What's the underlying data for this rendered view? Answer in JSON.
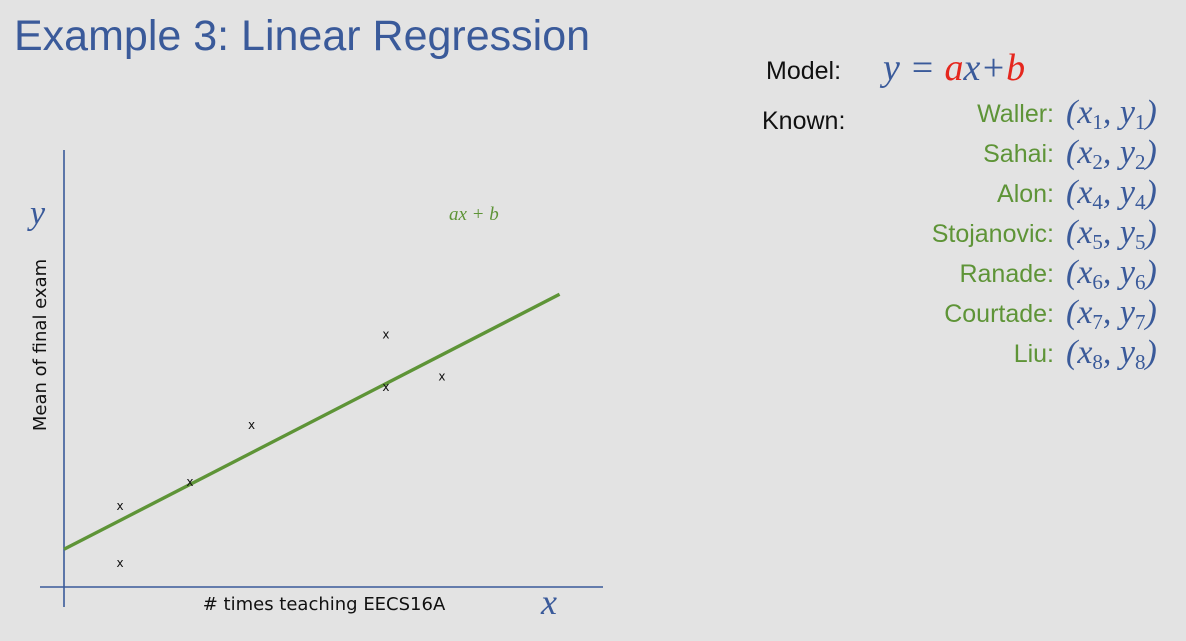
{
  "slide": {
    "title": "Example 3: Linear Regression"
  },
  "chart_data": {
    "type": "scatter",
    "title": "",
    "xlabel": "# times teaching EECS16A",
    "ylabel": "Mean of final exam",
    "x_axis_symbol": "x",
    "y_axis_symbol": "y",
    "marker_label": "x",
    "fit_line_label": "ax + b",
    "fit_line": {
      "start": [
        0,
        0.93
      ],
      "end": [
        8.85,
        7.22
      ]
    },
    "points": [
      {
        "x": 1,
        "y": 0.58
      },
      {
        "x": 1,
        "y": 1.98
      },
      {
        "x": 2.25,
        "y": 2.58
      },
      {
        "x": 3.35,
        "y": 3.98
      },
      {
        "x": 5.75,
        "y": 6.22
      },
      {
        "x": 5.75,
        "y": 4.92
      },
      {
        "x": 6.75,
        "y": 5.18
      }
    ],
    "xlim": [
      0,
      9
    ],
    "ylim": [
      0,
      9
    ],
    "grid": false,
    "colors": {
      "axis": "#3a5a9a",
      "fit_line": "#5e9437",
      "markers": "#111111"
    }
  },
  "model": {
    "label": "Model:",
    "lhs": "y",
    "equals": " = ",
    "a": "a",
    "x": "x",
    "plus": "+",
    "b": "b"
  },
  "known": {
    "label": "Known:",
    "entries": [
      {
        "name": "Waller:",
        "sub": "1"
      },
      {
        "name": "Sahai:",
        "sub": "2"
      },
      {
        "name": "Alon:",
        "sub": "4"
      },
      {
        "name": "Stojanovic:",
        "sub": "5"
      },
      {
        "name": "Ranade:",
        "sub": "6"
      },
      {
        "name": "Courtade:",
        "sub": "7"
      },
      {
        "name": "Liu:",
        "sub": "8"
      }
    ]
  }
}
